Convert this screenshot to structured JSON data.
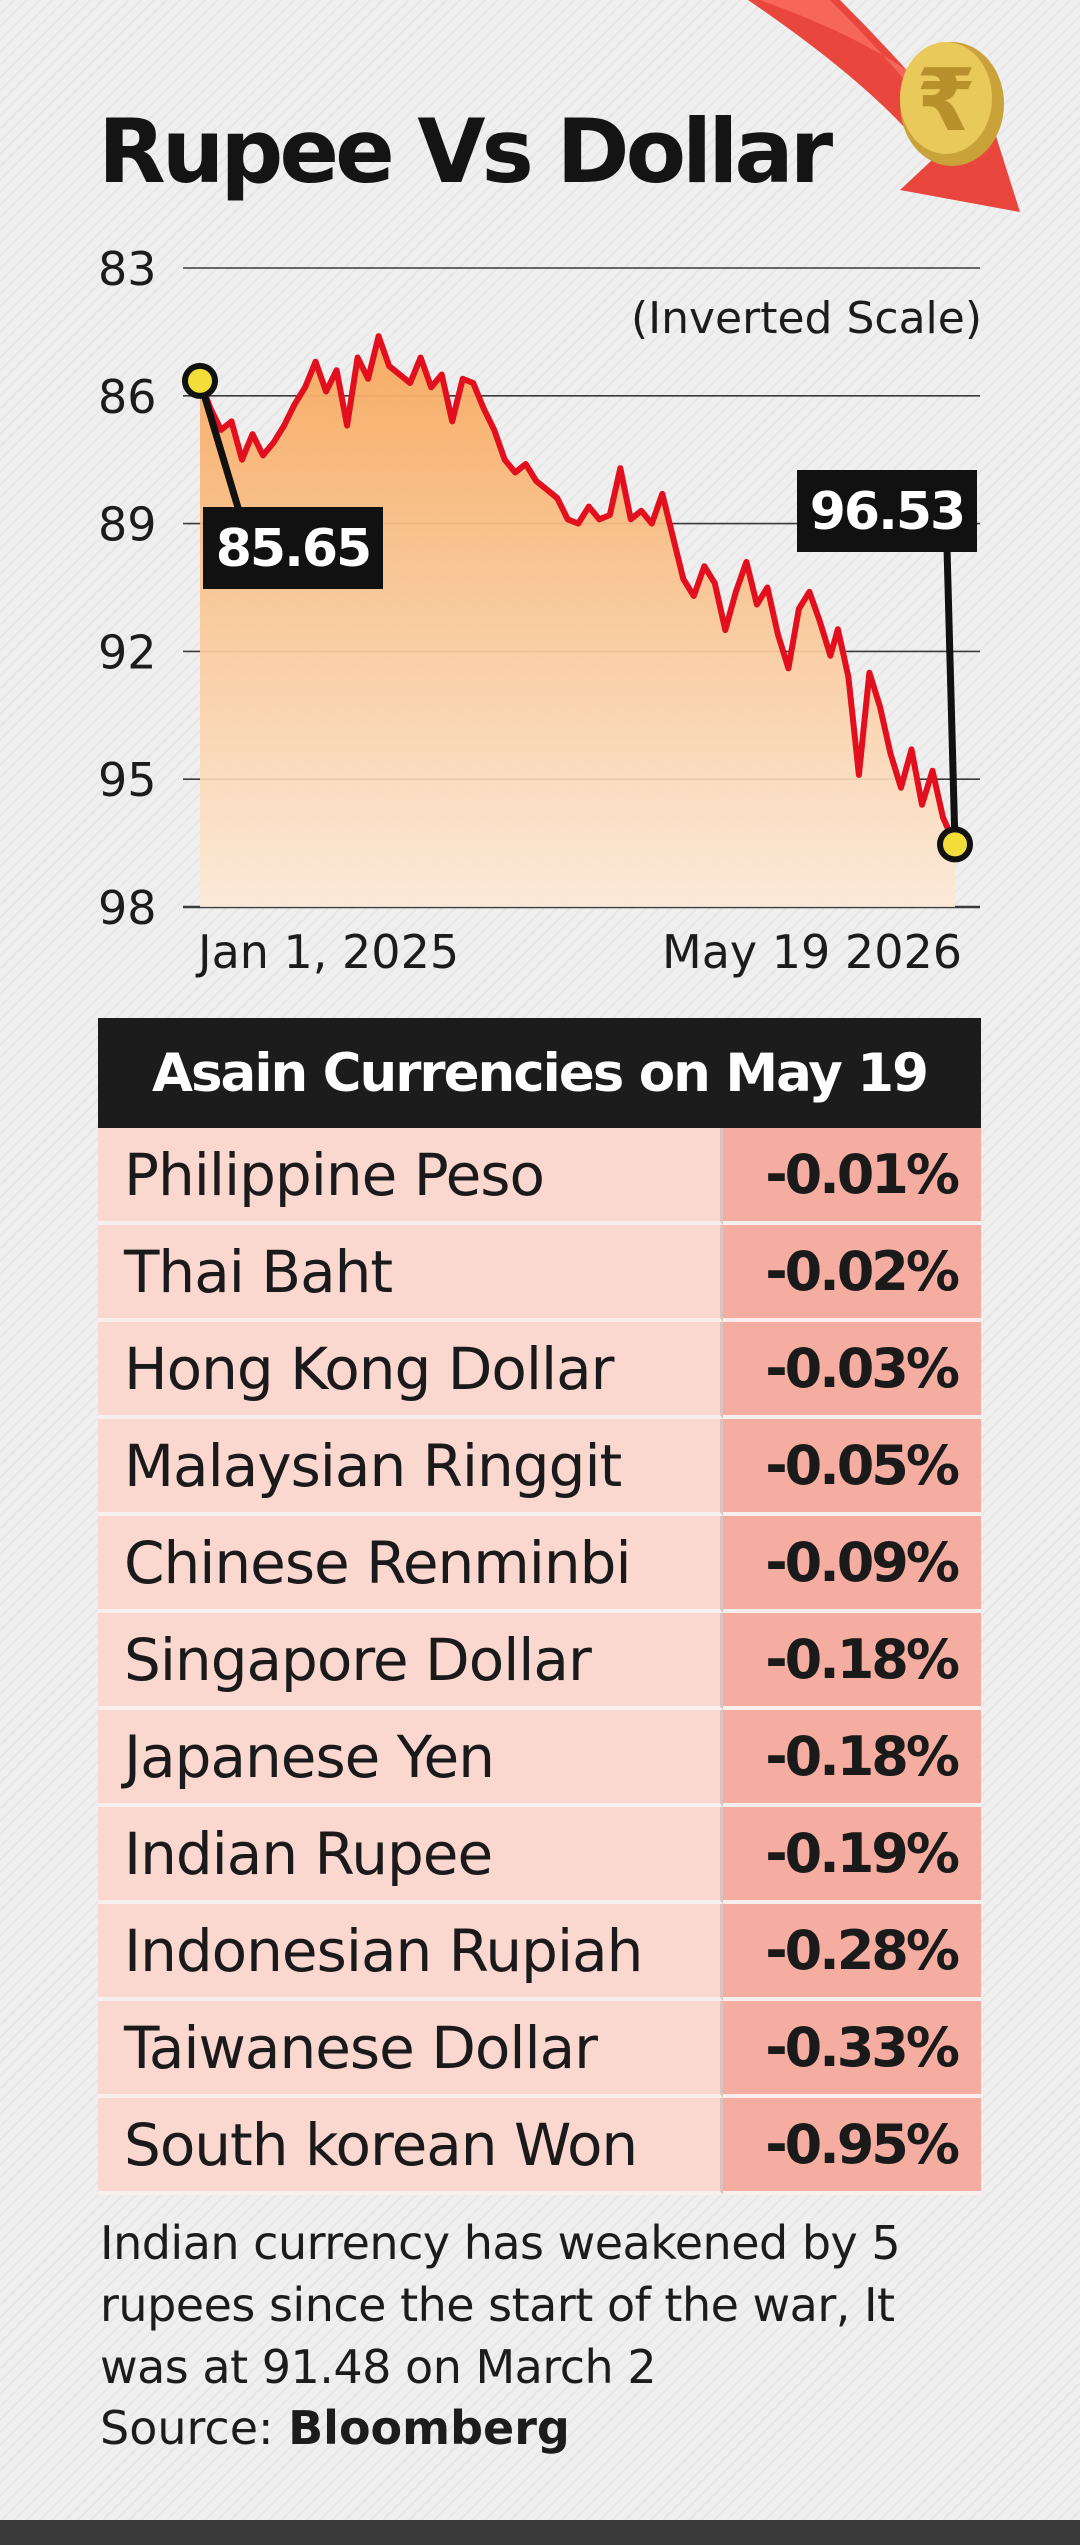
{
  "title": "Rupee Vs Dollar",
  "chart_data": {
    "type": "line",
    "title": "Rupee Vs Dollar",
    "scale_note": "(Inverted Scale)",
    "y_inverted": true,
    "ylim": [
      83,
      98
    ],
    "y_ticks": [
      "83",
      "86",
      "89",
      "92",
      "95",
      "98"
    ],
    "x_labels": [
      "Jan 1, 2025",
      "May 19 2026"
    ],
    "x_range": [
      "2025-01-01",
      "2026-05-19"
    ],
    "grid": true,
    "fill_color": "#f7a85c",
    "line_color": "#e2101f",
    "series": [
      {
        "x": [
          "2025-01-01",
          "2025-01-08",
          "2025-01-15",
          "2025-01-22",
          "2025-01-29",
          "2025-02-05",
          "2025-02-12",
          "2025-02-19",
          "2025-02-26",
          "2025-03-05",
          "2025-03-12",
          "2025-03-19",
          "2025-03-26",
          "2025-04-02",
          "2025-04-09",
          "2025-04-16",
          "2025-04-23",
          "2025-04-30",
          "2025-05-07",
          "2025-05-14",
          "2025-05-21",
          "2025-05-28",
          "2025-06-04",
          "2025-06-11",
          "2025-06-18",
          "2025-06-25",
          "2025-07-02",
          "2025-07-09",
          "2025-07-16",
          "2025-07-23",
          "2025-07-30",
          "2025-08-06",
          "2025-08-13",
          "2025-08-20",
          "2025-08-27",
          "2025-09-03",
          "2025-09-10",
          "2025-09-17",
          "2025-09-24",
          "2025-10-01",
          "2025-10-08",
          "2025-10-15",
          "2025-10-22",
          "2025-10-29",
          "2025-11-05",
          "2025-11-12",
          "2025-11-19",
          "2025-11-26",
          "2025-12-03",
          "2025-12-10",
          "2025-12-17",
          "2025-12-24",
          "2025-12-31",
          "2026-01-07",
          "2026-01-14",
          "2026-01-21",
          "2026-01-28",
          "2026-02-04",
          "2026-02-11",
          "2026-02-18",
          "2026-02-25",
          "2026-03-02",
          "2026-03-09",
          "2026-03-16",
          "2026-03-23",
          "2026-03-30",
          "2026-04-06",
          "2026-04-13",
          "2026-04-20",
          "2026-04-27",
          "2026-05-04",
          "2026-05-11",
          "2026-05-19"
        ],
        "y": [
          85.65,
          86.3,
          86.8,
          86.6,
          87.5,
          86.9,
          87.4,
          87.1,
          86.7,
          86.2,
          85.8,
          85.2,
          85.9,
          85.4,
          86.7,
          85.1,
          85.6,
          84.6,
          85.3,
          85.5,
          85.7,
          85.1,
          85.8,
          85.5,
          86.6,
          85.6,
          85.7,
          86.3,
          86.8,
          87.5,
          87.8,
          87.6,
          88.0,
          88.2,
          88.4,
          88.9,
          89.0,
          88.6,
          88.9,
          88.8,
          87.7,
          88.9,
          88.7,
          89.0,
          88.3,
          89.3,
          90.3,
          90.7,
          90.0,
          90.4,
          91.5,
          90.6,
          89.9,
          90.9,
          90.5,
          91.6,
          92.4,
          91.0,
          90.6,
          91.3,
          92.1,
          91.48,
          92.6,
          94.9,
          92.5,
          93.3,
          94.4,
          95.2,
          94.3,
          95.6,
          94.8,
          95.9,
          96.53
        ]
      }
    ],
    "annotations": [
      {
        "x": "2025-01-01",
        "y": 85.65,
        "text": "85.65"
      },
      {
        "x": "2026-05-19",
        "y": 96.53,
        "text": "96.53"
      }
    ]
  },
  "table": {
    "header": "Asain Currencies on May 19",
    "rows": [
      {
        "name": "Philippine Peso",
        "value": "-0.01%"
      },
      {
        "name": "Thai Baht",
        "value": "-0.02%"
      },
      {
        "name": "Hong Kong Dollar",
        "value": "-0.03%"
      },
      {
        "name": "Malaysian Ringgit",
        "value": "-0.05%"
      },
      {
        "name": "Chinese Renminbi",
        "value": "-0.09%"
      },
      {
        "name": "Singapore Dollar",
        "value": "-0.18%"
      },
      {
        "name": "Japanese Yen",
        "value": "-0.18%"
      },
      {
        "name": "Indian Rupee",
        "value": "-0.19%"
      },
      {
        "name": "Indonesian Rupiah",
        "value": "-0.28%"
      },
      {
        "name": "Taiwanese Dollar",
        "value": "-0.33%"
      },
      {
        "name": "South korean Won",
        "value": "-0.95%"
      }
    ]
  },
  "footnote": "Indian currency has weakened by 5 rupees since the start of the war, It was at 91.48 on March 2",
  "source_label": "Source:",
  "source_name": "Bloomberg",
  "icons": [
    "rupee-coin-icon",
    "down-arrow-icon"
  ]
}
